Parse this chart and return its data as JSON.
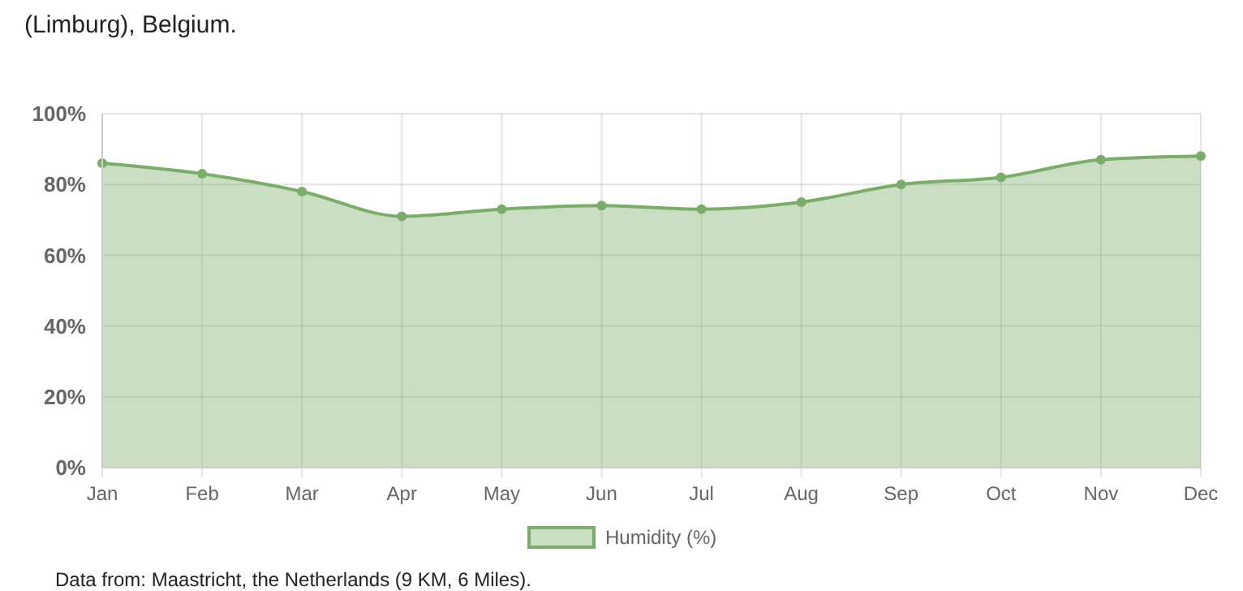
{
  "chart_data": {
    "type": "area",
    "title": "(Limburg), Belgium.",
    "categories": [
      "Jan",
      "Feb",
      "Mar",
      "Apr",
      "May",
      "Jun",
      "Jul",
      "Aug",
      "Sep",
      "Oct",
      "Nov",
      "Dec"
    ],
    "series": [
      {
        "name": "Humidity (%)",
        "color": "#7aad6a",
        "values": [
          86,
          83,
          78,
          71,
          73,
          74,
          73,
          75,
          80,
          82,
          87,
          88
        ]
      }
    ],
    "ylim": [
      0,
      100
    ],
    "yticks": [
      {
        "value": 0,
        "label": "0%"
      },
      {
        "value": 20,
        "label": "20%"
      },
      {
        "value": 40,
        "label": "40%"
      },
      {
        "value": 60,
        "label": "60%"
      },
      {
        "value": 80,
        "label": "80%"
      },
      {
        "value": 100,
        "label": "100%"
      }
    ],
    "grid": true,
    "legend": "bottom",
    "marker": "circle",
    "line_style": "solid",
    "annotations": [
      "Data from: Maastricht, the Netherlands (9 KM, 6 Miles)."
    ]
  }
}
